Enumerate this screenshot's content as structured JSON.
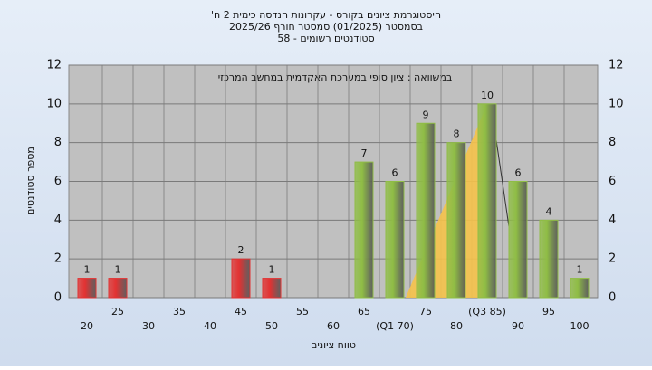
{
  "chart_data": {
    "type": "bar",
    "title": [
      "היסטוגרמת ציונים בקורס - עקרונות הנדסה כימית 2 ח'",
      "בסמסטר (01/2025) סמסטר חורף 2025/26",
      "סטודנטים רשומים - 58"
    ],
    "annotation": "במשוואה : ציון סופי במערכת האקדמית במחשב המרכזי",
    "xlabel": "טווח ציונים",
    "ylabel": "מספר סטודנטים",
    "categories": [
      "20",
      "25",
      "30",
      "35",
      "40",
      "45",
      "50",
      "55",
      "60",
      "65",
      "(Q1 70)",
      "75",
      "80",
      "(Q3 85)",
      "90",
      "95",
      "100"
    ],
    "values": [
      1,
      1,
      0,
      0,
      0,
      2,
      1,
      0,
      0,
      7,
      6,
      9,
      8,
      10,
      6,
      4,
      1
    ],
    "colors": [
      "#e23232",
      "#e23232",
      "#e23232",
      "#e23232",
      "#e23232",
      "#e23232",
      "#e23232",
      "#8fbd45",
      "#8fbd45",
      "#8fbd45",
      "#8fbd45",
      "#8fbd45",
      "#8fbd45",
      "#8fbd45",
      "#8fbd45",
      "#8fbd45",
      "#8fbd45"
    ],
    "ylim": [
      0,
      12
    ],
    "yticks": [
      0,
      2,
      4,
      6,
      8,
      10,
      12
    ],
    "grid": true
  }
}
